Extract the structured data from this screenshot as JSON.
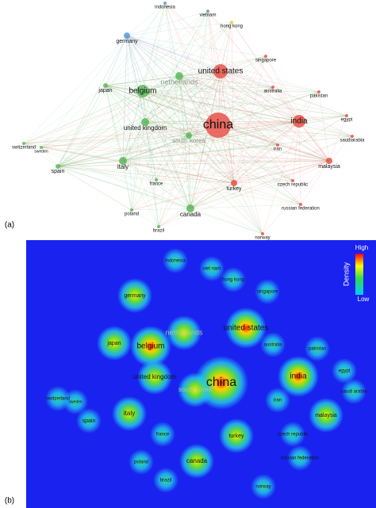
{
  "panels": [
    {
      "label": "(a)",
      "nodes": [
        "indonesia",
        "vietnam",
        "hong kong",
        "germany",
        "singapore",
        "netherlands",
        "united states",
        "japan",
        "australia",
        "belgium",
        "pakistan",
        "egypt",
        "united kingdom",
        "china",
        "india",
        "south korea",
        "saudiarabia",
        "switzerland",
        "sweden",
        "iran",
        "malaysia",
        "spain",
        "italy",
        "france",
        "turkey",
        "czech republic",
        "canada",
        "poland",
        "russian federation",
        "brazil",
        "norway"
      ]
    },
    {
      "label": "(b)",
      "nodes": [
        "indonesia",
        "viet nam",
        "hong kong",
        "germany",
        "singapore",
        "netherlands",
        "united states",
        "japan",
        "australia",
        "belgium",
        "pakistan",
        "egypt",
        "united kingdom",
        "china",
        "india",
        "south korea",
        "saudi arabia",
        "switzerland",
        "sweden",
        "iran",
        "malaysia",
        "spain",
        "italy",
        "france",
        "turkey",
        "czech republic",
        "canada",
        "poland",
        "russian federation",
        "brazil",
        "norway"
      ],
      "legend": {
        "title": "Density",
        "high": "High",
        "low": "Low"
      }
    }
  ]
}
